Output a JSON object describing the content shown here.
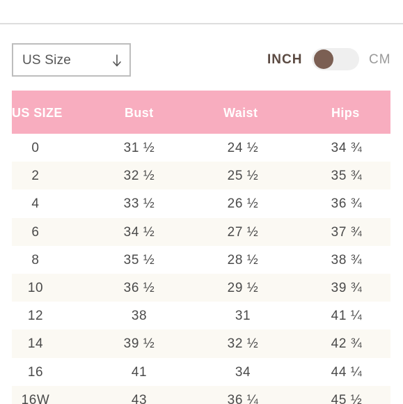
{
  "icons": {
    "close": "close-icon",
    "select_arrow": "arrow-down-icon"
  },
  "colors": {
    "header_bg": "#f8adbf",
    "header_text": "#ffffff",
    "row_alt_bg": "#fbf9f3",
    "toggle_knob": "#7b5f53",
    "inch_label": "#5b4a42"
  },
  "size_select": {
    "selected": "US Size"
  },
  "units": {
    "inch": "INCH",
    "cm": "CM",
    "selected": "INCH"
  },
  "table": {
    "headers": [
      "US SIZE",
      "Bust",
      "Waist",
      "Hips"
    ],
    "rows": [
      [
        "0",
        "31 ½",
        "24 ½",
        "34 ¾"
      ],
      [
        "2",
        "32 ½",
        "25 ½",
        "35 ¾"
      ],
      [
        "4",
        "33 ½",
        "26 ½",
        "36 ¾"
      ],
      [
        "6",
        "34 ½",
        "27 ½",
        "37 ¾"
      ],
      [
        "8",
        "35 ½",
        "28 ½",
        "38 ¾"
      ],
      [
        "10",
        "36 ½",
        "29 ½",
        "39 ¾"
      ],
      [
        "12",
        "38",
        "31",
        "41 ¼"
      ],
      [
        "14",
        "39 ½",
        "32 ½",
        "42 ¾"
      ],
      [
        "16",
        "41",
        "34",
        "44 ¼"
      ],
      [
        "16W",
        "43",
        "36 ¼",
        "45 ½"
      ]
    ]
  }
}
